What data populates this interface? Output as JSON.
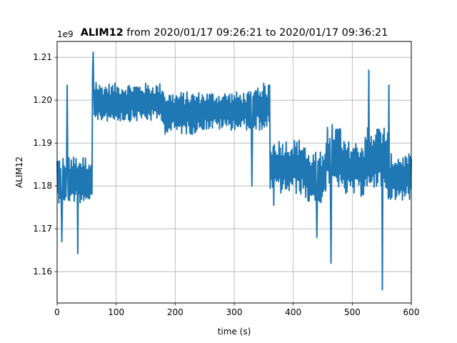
{
  "chart_data": {
    "type": "line",
    "title_bold": "ALIM12",
    "title_rest": " from 2020/01/17 09:26:21 to 2020/01/17 09:36:21",
    "xlabel": "time (s)",
    "ylabel": "ALIM12",
    "offset_label": "1e9",
    "xlim": [
      0,
      600
    ],
    "ylim": [
      1.1527,
      1.2137
    ],
    "y_scale_factor": 1000000000,
    "grid": true,
    "x_ticks": [
      0,
      100,
      200,
      300,
      400,
      500,
      600
    ],
    "x_tick_labels": [
      "0",
      "100",
      "200",
      "300",
      "400",
      "500",
      "600"
    ],
    "y_ticks": [
      1.16,
      1.17,
      1.18,
      1.19,
      1.2,
      1.21
    ],
    "y_tick_labels": [
      "1.16",
      "1.17",
      "1.18",
      "1.19",
      "1.20",
      "1.21"
    ],
    "series": [
      {
        "color": "#1f77b4",
        "sample_interval_s": 1,
        "segments": [
          {
            "t_start": 0,
            "t_end": 59,
            "mean": 1.1815,
            "amp": 0.0055
          },
          {
            "t_start": 60,
            "t_end": 69,
            "mean": 1.199,
            "amp": 0.0065
          },
          {
            "t_start": 70,
            "t_end": 180,
            "mean": 1.1995,
            "amp": 0.0045
          },
          {
            "t_start": 181,
            "t_end": 240,
            "mean": 1.197,
            "amp": 0.005
          },
          {
            "t_start": 241,
            "t_end": 330,
            "mean": 1.1975,
            "amp": 0.0045
          },
          {
            "t_start": 331,
            "t_end": 360,
            "mean": 1.1985,
            "amp": 0.0055
          },
          {
            "t_start": 361,
            "t_end": 420,
            "mean": 1.1845,
            "amp": 0.0065
          },
          {
            "t_start": 421,
            "t_end": 455,
            "mean": 1.182,
            "amp": 0.006
          },
          {
            "t_start": 456,
            "t_end": 480,
            "mean": 1.187,
            "amp": 0.0075
          },
          {
            "t_start": 481,
            "t_end": 520,
            "mean": 1.184,
            "amp": 0.0065
          },
          {
            "t_start": 521,
            "t_end": 560,
            "mean": 1.1865,
            "amp": 0.0075
          },
          {
            "t_start": 561,
            "t_end": 600,
            "mean": 1.182,
            "amp": 0.0055
          }
        ],
        "spikes": [
          {
            "t": 17,
            "y": 1.2035
          },
          {
            "t": 8,
            "y": 1.167
          },
          {
            "t": 35,
            "y": 1.1642
          },
          {
            "t": 61,
            "y": 1.2112
          },
          {
            "t": 330,
            "y": 1.18
          },
          {
            "t": 367,
            "y": 1.1755
          },
          {
            "t": 440,
            "y": 1.168
          },
          {
            "t": 464,
            "y": 1.162
          },
          {
            "t": 528,
            "y": 1.207
          },
          {
            "t": 551,
            "y": 1.1558
          },
          {
            "t": 562,
            "y": 1.2035
          }
        ]
      }
    ]
  }
}
